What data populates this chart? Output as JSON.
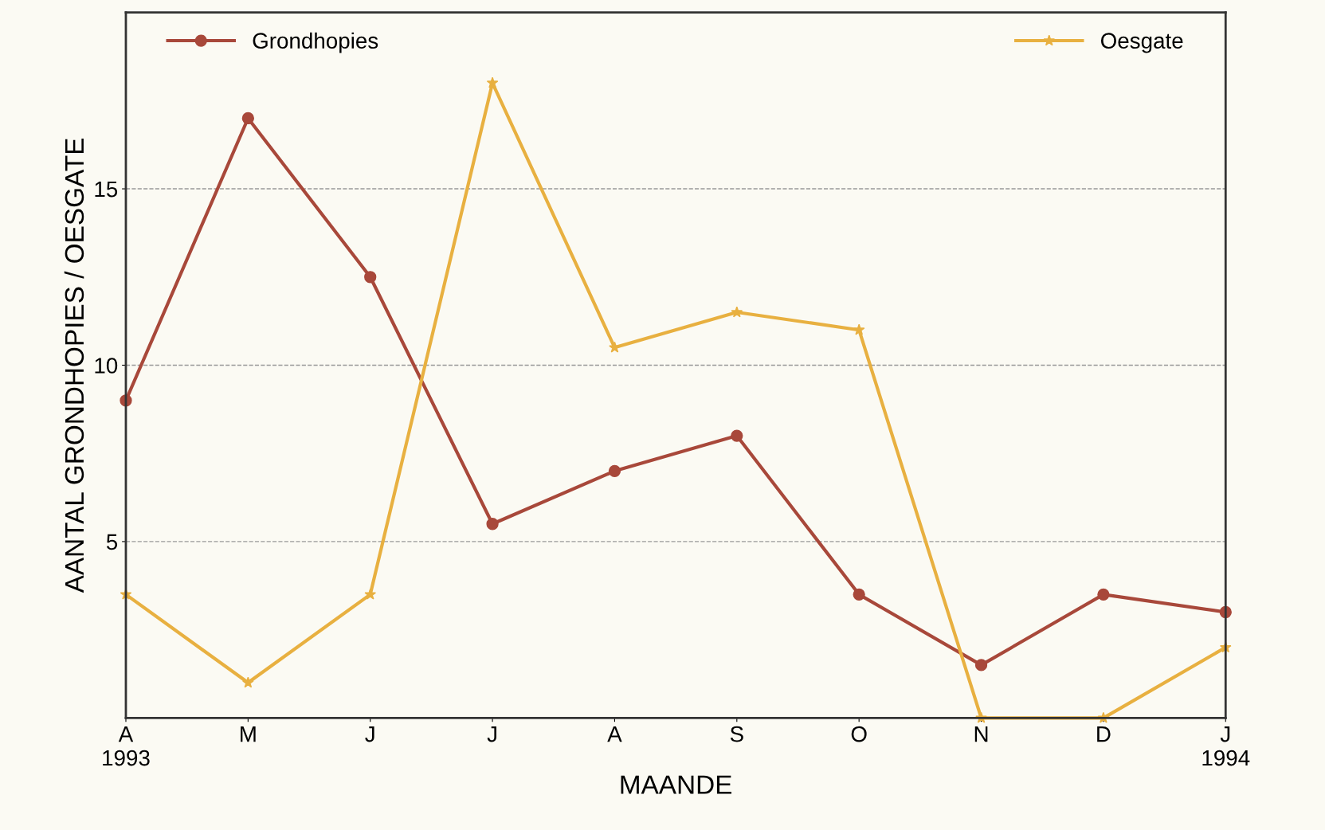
{
  "chart_data": {
    "type": "line",
    "xlabel": "MAANDE",
    "ylabel": "AANTAL GRONDHOPIES / OESGATE",
    "categories": [
      "A\n1993",
      "M",
      "J",
      "J",
      "A",
      "S",
      "O",
      "N",
      "D",
      "J\n1994"
    ],
    "series": [
      {
        "name": "Grondhopies",
        "color": "#a8483a",
        "marker": "circle",
        "values": [
          9,
          17,
          12.5,
          5.5,
          7,
          8,
          3.5,
          1.5,
          3.5,
          3
        ]
      },
      {
        "name": "Oesgate",
        "color": "#e8b040",
        "marker": "star",
        "values": [
          3.5,
          1,
          3.5,
          18,
          10.5,
          11.5,
          11,
          0,
          0,
          2
        ]
      }
    ],
    "ylim": [
      0,
      20
    ],
    "yticks": [
      5,
      10,
      15
    ],
    "grid": "y",
    "legend": "top",
    "line_style": "solid"
  }
}
